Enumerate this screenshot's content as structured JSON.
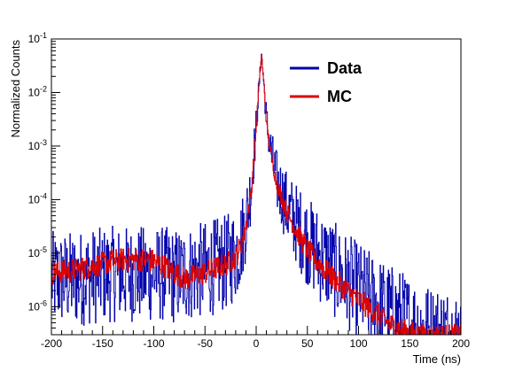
{
  "chart_data": {
    "type": "line",
    "title": "",
    "xlabel": "Time (ns)",
    "ylabel": "Normalized Counts",
    "xlim": [
      -200,
      200
    ],
    "ylim": [
      3e-07,
      0.1
    ],
    "yscale": "log",
    "grid": false,
    "legend_position": "top-right",
    "x_ticks": [
      -200,
      -150,
      -100,
      -50,
      0,
      50,
      100,
      150,
      200
    ],
    "x_tick_labels": [
      "-200",
      "-150",
      "-100",
      "-50",
      "0",
      "50",
      "100",
      "150",
      "200"
    ],
    "y_ticks": [
      1e-06,
      1e-05,
      0.0001,
      0.001,
      0.01,
      0.1
    ],
    "y_tick_labels": [
      {
        "base": "10",
        "exp": "-6"
      },
      {
        "base": "10",
        "exp": "-5"
      },
      {
        "base": "10",
        "exp": "-4"
      },
      {
        "base": "10",
        "exp": "-3"
      },
      {
        "base": "10",
        "exp": "-2"
      },
      {
        "base": "10",
        "exp": "-1"
      }
    ],
    "series": [
      {
        "name": "Data",
        "color": "#0000aa",
        "x": [
          -200,
          -180,
          -160,
          -140,
          -120,
          -100,
          -90,
          -80,
          -70,
          -60,
          -50,
          -40,
          -30,
          -20,
          -15,
          -10,
          -5,
          0,
          2,
          4,
          5,
          6,
          8,
          10,
          15,
          20,
          30,
          40,
          50,
          60,
          70,
          80,
          90,
          100,
          110,
          120,
          130,
          140,
          150,
          160,
          170,
          180,
          190,
          200
        ],
        "y": [
          4e-06,
          4e-06,
          4.5e-06,
          5e-06,
          5e-06,
          5e-06,
          5e-06,
          4.5e-06,
          5e-06,
          5.5e-06,
          6e-06,
          7e-06,
          8e-06,
          1.2e-05,
          2e-05,
          5e-05,
          0.0002,
          0.003,
          0.01,
          0.03,
          0.055,
          0.03,
          0.01,
          0.003,
          0.0007,
          0.00025,
          8e-05,
          4e-05,
          2e-05,
          1.2e-05,
          8e-06,
          5e-06,
          3.5e-06,
          2.5e-06,
          1.8e-06,
          1.3e-06,
          1e-06,
          8e-07,
          6e-07,
          5e-07,
          4e-07,
          4e-07,
          3.5e-07,
          3.5e-07
        ]
      },
      {
        "name": "MC",
        "color": "#dd0000",
        "x": [
          -200,
          -180,
          -160,
          -140,
          -130,
          -120,
          -110,
          -100,
          -90,
          -80,
          -70,
          -60,
          -50,
          -40,
          -30,
          -20,
          -15,
          -10,
          -5,
          0,
          2,
          4,
          5,
          6,
          8,
          10,
          15,
          20,
          30,
          40,
          50,
          60,
          70,
          80,
          90,
          100,
          110,
          120,
          130,
          140,
          150,
          160,
          170,
          180,
          190,
          200
        ],
        "y": [
          4.5e-06,
          5e-06,
          6e-06,
          7.5e-06,
          8e-06,
          8e-06,
          8e-06,
          7.5e-06,
          6e-06,
          4.5e-06,
          3.5e-06,
          4e-06,
          4.5e-06,
          5.5e-06,
          6.5e-06,
          9e-06,
          1.5e-05,
          3.5e-05,
          0.00015,
          0.0025,
          0.01,
          0.03,
          0.05,
          0.03,
          0.01,
          0.0025,
          0.0006,
          0.0002,
          6e-05,
          2.5e-05,
          1.2e-05,
          7e-06,
          4.5e-06,
          3e-06,
          2e-06,
          1.4e-06,
          1e-06,
          7e-07,
          5e-07,
          4e-07,
          3.5e-07,
          3e-07,
          3e-07,
          3e-07,
          3e-07,
          3e-07
        ]
      }
    ]
  }
}
